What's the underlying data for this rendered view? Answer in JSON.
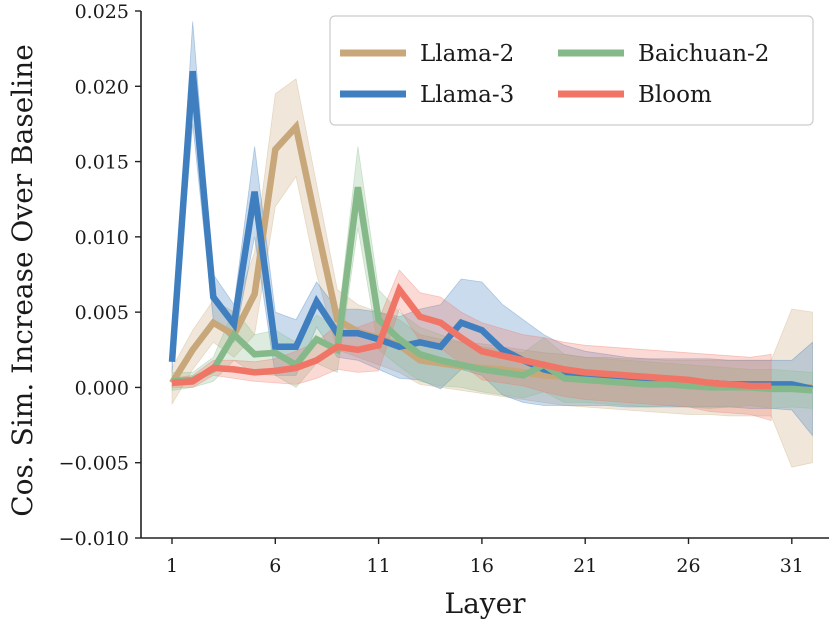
{
  "chart_data": {
    "type": "line",
    "xlabel": "Layer",
    "ylabel": "Cos. Sim. Increase Over Baseline",
    "xlim": [
      -0.5,
      32.8
    ],
    "ylim": [
      -0.01,
      0.025
    ],
    "xticks": [
      1,
      6,
      11,
      16,
      21,
      26,
      31
    ],
    "xtick_labels": [
      "1",
      "6",
      "11",
      "16",
      "21",
      "26",
      "31"
    ],
    "yticks": [
      0.025,
      0.02,
      0.015,
      0.01,
      0.005,
      0.0,
      -0.005,
      -0.01
    ],
    "ytick_labels": [
      "0.025",
      "0.020",
      "0.015",
      "0.010",
      "0.005",
      "0.000",
      "−0.005",
      "−0.010"
    ],
    "legend_position": "top-right",
    "legend": {
      "llama2": "Llama-2",
      "llama3": "Llama-3",
      "baichuan2": "Baichuan-2",
      "bloom": "Bloom"
    },
    "series": [
      {
        "key": "llama2",
        "name": "Llama-2",
        "color": "#C8A87A",
        "x": [
          1,
          2,
          3,
          4,
          5,
          6,
          7,
          8,
          9,
          10,
          11,
          12,
          13,
          14,
          15,
          16,
          17,
          18,
          19,
          20,
          21,
          22,
          23,
          24,
          25,
          26,
          27,
          28,
          29,
          30,
          31,
          32
        ],
        "values": [
          0.0003,
          0.0025,
          0.0043,
          0.0035,
          0.0062,
          0.0158,
          0.0173,
          0.0108,
          0.0045,
          0.0037,
          0.0033,
          0.0028,
          0.0018,
          0.0016,
          0.0014,
          0.0013,
          0.0012,
          0.001,
          0.0008,
          0.0007,
          0.0005,
          0.0004,
          0.0003,
          0.0002,
          0.0002,
          0.0001,
          0.0001,
          0.0001,
          0.0,
          0.0,
          0.0,
          0.0
        ],
        "upper": [
          0.0013,
          0.0038,
          0.0058,
          0.005,
          0.009,
          0.0195,
          0.0205,
          0.0135,
          0.0065,
          0.0055,
          0.005,
          0.0045,
          0.0035,
          0.0032,
          0.003,
          0.0029,
          0.0027,
          0.0025,
          0.0023,
          0.0022,
          0.002,
          0.002,
          0.0019,
          0.0019,
          0.0018,
          0.0018,
          0.0018,
          0.0018,
          0.0018,
          0.0018,
          0.0052,
          0.005
        ],
        "lower": [
          -0.0011,
          0.0012,
          0.003,
          0.002,
          0.0035,
          0.012,
          0.014,
          0.0075,
          0.0025,
          0.002,
          0.0015,
          0.001,
          0.0002,
          0.0,
          -0.0002,
          -0.0004,
          -0.0006,
          -0.0008,
          -0.001,
          -0.0012,
          -0.0013,
          -0.0014,
          -0.0015,
          -0.0016,
          -0.0017,
          -0.0018,
          -0.0018,
          -0.0019,
          -0.0019,
          -0.0019,
          -0.0053,
          -0.005
        ]
      },
      {
        "key": "llama3",
        "name": "Llama-3",
        "color": "#3F7FBF",
        "x": [
          1,
          2,
          3,
          4,
          5,
          6,
          7,
          8,
          9,
          10,
          11,
          12,
          13,
          14,
          15,
          16,
          17,
          18,
          19,
          20,
          21,
          22,
          23,
          24,
          25,
          26,
          27,
          28,
          29,
          30,
          31,
          32
        ],
        "values": [
          0.0017,
          0.021,
          0.006,
          0.0042,
          0.013,
          0.0027,
          0.0027,
          0.0057,
          0.0036,
          0.0036,
          0.0032,
          0.0027,
          0.003,
          0.0027,
          0.0043,
          0.0038,
          0.0025,
          0.0018,
          0.0012,
          0.0009,
          0.0006,
          0.0005,
          0.0004,
          0.0003,
          0.0003,
          0.0003,
          0.0003,
          0.0002,
          0.0002,
          0.0002,
          0.0002,
          -0.0001
        ],
        "upper": [
          0.0025,
          0.0243,
          0.0075,
          0.0055,
          0.016,
          0.005,
          0.0045,
          0.007,
          0.0052,
          0.0052,
          0.005,
          0.0047,
          0.0052,
          0.0055,
          0.0072,
          0.007,
          0.0055,
          0.0045,
          0.0035,
          0.0028,
          0.0024,
          0.0022,
          0.002,
          0.0019,
          0.0019,
          0.0019,
          0.0019,
          0.0018,
          0.0018,
          0.0018,
          0.0018,
          0.003
        ],
        "lower": [
          0.001,
          0.0175,
          0.0045,
          0.003,
          0.01,
          0.0008,
          0.0008,
          0.004,
          0.002,
          0.0018,
          0.0012,
          0.0006,
          0.0005,
          -0.0001,
          0.0012,
          0.0008,
          -0.0005,
          -0.001,
          -0.0012,
          -0.0012,
          -0.0012,
          -0.0012,
          -0.0013,
          -0.0013,
          -0.0013,
          -0.0013,
          -0.0013,
          -0.0013,
          -0.0014,
          -0.0014,
          -0.0015,
          -0.0032
        ]
      },
      {
        "key": "baichuan2",
        "name": "Baichuan-2",
        "color": "#86B98A",
        "x": [
          1,
          2,
          3,
          4,
          5,
          6,
          7,
          8,
          9,
          10,
          11,
          12,
          13,
          14,
          15,
          16,
          17,
          18,
          19,
          20,
          21,
          22,
          23,
          24,
          25,
          26,
          27,
          28,
          29,
          30,
          31,
          32
        ],
        "values": [
          0.0004,
          0.0005,
          0.0012,
          0.0035,
          0.0022,
          0.0023,
          0.0015,
          0.0032,
          0.0025,
          0.0133,
          0.0045,
          0.0032,
          0.0022,
          0.0018,
          0.0015,
          0.0012,
          0.001,
          0.0008,
          0.0015,
          0.0006,
          0.0005,
          0.0004,
          0.0003,
          0.0002,
          0.0002,
          0.0001,
          0.0,
          0.0,
          0.0,
          -0.0001,
          -0.0001,
          -0.0002
        ],
        "upper": [
          0.001,
          0.001,
          0.002,
          0.0052,
          0.0035,
          0.0038,
          0.003,
          0.0048,
          0.004,
          0.016,
          0.0065,
          0.005,
          0.004,
          0.0035,
          0.003,
          0.0027,
          0.0025,
          0.0023,
          0.0033,
          0.0022,
          0.002,
          0.0019,
          0.0018,
          0.0017,
          0.0016,
          0.0015,
          0.0014,
          0.0013,
          0.0012,
          0.0012,
          0.0011,
          0.001
        ],
        "lower": [
          -0.0002,
          0.0,
          0.0004,
          0.0018,
          0.0009,
          0.0008,
          0.0,
          0.0016,
          0.001,
          0.0106,
          0.0025,
          0.0014,
          0.0004,
          0.0001,
          0.0,
          -0.0003,
          -0.0005,
          -0.0007,
          -0.0003,
          -0.001,
          -0.001,
          -0.0011,
          -0.0012,
          -0.0013,
          -0.0012,
          -0.0013,
          -0.0014,
          -0.0013,
          -0.0012,
          -0.0014,
          -0.0013,
          -0.0014
        ]
      },
      {
        "key": "bloom",
        "name": "Bloom",
        "color": "#F07566",
        "x": [
          1,
          2,
          3,
          4,
          5,
          6,
          7,
          8,
          9,
          10,
          11,
          12,
          13,
          14,
          15,
          16,
          17,
          18,
          19,
          20,
          21,
          22,
          23,
          24,
          25,
          26,
          27,
          28,
          29,
          30
        ],
        "values": [
          0.0003,
          0.0004,
          0.0013,
          0.0012,
          0.001,
          0.0011,
          0.0013,
          0.0018,
          0.0027,
          0.0025,
          0.0028,
          0.0065,
          0.0047,
          0.0043,
          0.0033,
          0.0024,
          0.0021,
          0.0018,
          0.0015,
          0.0012,
          0.001,
          0.0009,
          0.0008,
          0.0007,
          0.0006,
          0.0005,
          0.0003,
          0.0002,
          0.0001,
          0.0001
        ],
        "upper": [
          0.0006,
          0.0008,
          0.0018,
          0.0018,
          0.0017,
          0.0019,
          0.0024,
          0.003,
          0.0042,
          0.004,
          0.0045,
          0.0078,
          0.0063,
          0.006,
          0.005,
          0.0043,
          0.0039,
          0.0035,
          0.0033,
          0.003,
          0.0028,
          0.0027,
          0.0026,
          0.0025,
          0.0024,
          0.0023,
          0.0022,
          0.0021,
          0.002,
          0.0022
        ],
        "lower": [
          0.0,
          0.0,
          0.0008,
          0.0006,
          0.0004,
          0.0003,
          0.0002,
          0.0006,
          0.0012,
          0.001,
          0.0011,
          0.0052,
          0.0031,
          0.0026,
          0.0016,
          0.0005,
          0.0003,
          0.0001,
          -0.0003,
          -0.0006,
          -0.0008,
          -0.0009,
          -0.001,
          -0.0011,
          -0.0012,
          -0.0013,
          -0.0016,
          -0.0017,
          -0.0018,
          -0.0022
        ]
      }
    ]
  }
}
